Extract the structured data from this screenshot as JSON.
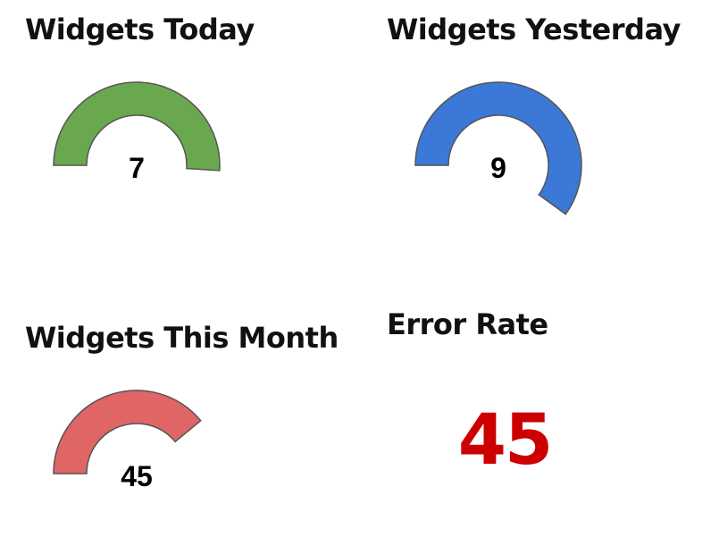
{
  "widgets": [
    {
      "id": "today",
      "title": "Widgets Today",
      "value": "7",
      "fraction": 0.51,
      "color": "#6aa84f"
    },
    {
      "id": "yesterday",
      "title": "Widgets Yesterday",
      "value": "9",
      "fraction": 0.6,
      "color": "#3c78d8"
    },
    {
      "id": "month",
      "title": "Widgets This Month",
      "value": "45",
      "fraction": 0.39,
      "color": "#e06666"
    }
  ],
  "error_rate": {
    "title": "Error Rate",
    "value": "45",
    "color": "#cc0000"
  }
}
